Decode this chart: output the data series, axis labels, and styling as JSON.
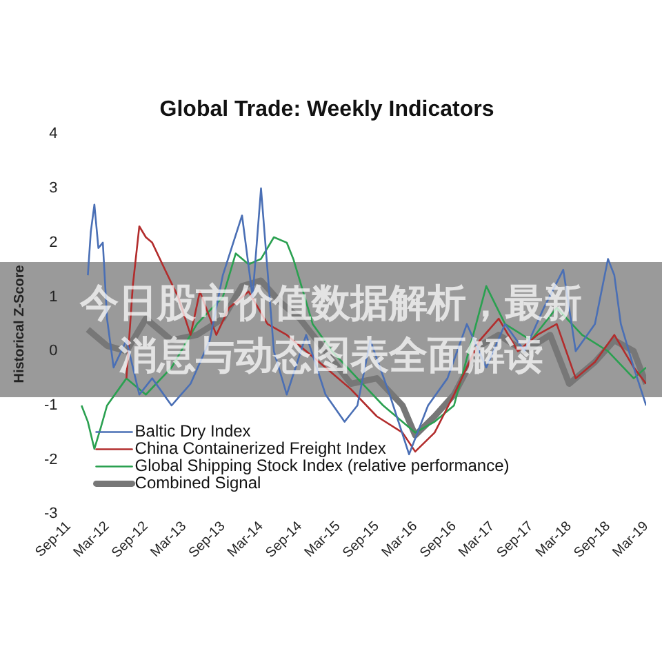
{
  "chart_data": {
    "type": "line",
    "title": "Global Trade: Weekly Indicators",
    "ylabel": "Historical Z-Score",
    "annotations": [
      "今日股市价值数据解析，最新消息与动态图表全面解读"
    ],
    "xlim": [
      "2011-09",
      "2019-03"
    ],
    "ylim": [
      -3,
      4
    ],
    "yticks": [
      -3,
      -2,
      -1,
      0,
      1,
      2,
      3,
      4
    ],
    "xticks": [
      {
        "value": "2011-09",
        "label": "Sep-11"
      },
      {
        "value": "2012-03",
        "label": "Mar-12"
      },
      {
        "value": "2012-09",
        "label": "Sep-12"
      },
      {
        "value": "2013-03",
        "label": "Mar-13"
      },
      {
        "value": "2013-09",
        "label": "Sep-13"
      },
      {
        "value": "2014-03",
        "label": "Mar-14"
      },
      {
        "value": "2014-09",
        "label": "Sep-14"
      },
      {
        "value": "2015-03",
        "label": "Mar-15"
      },
      {
        "value": "2015-09",
        "label": "Sep-15"
      },
      {
        "value": "2016-03",
        "label": "Mar-16"
      },
      {
        "value": "2016-09",
        "label": "Sep-16"
      },
      {
        "value": "2017-03",
        "label": "Mar-17"
      },
      {
        "value": "2017-09",
        "label": "Sep-17"
      },
      {
        "value": "2018-03",
        "label": "Mar-18"
      },
      {
        "value": "2018-09",
        "label": "Sep-18"
      },
      {
        "value": "2019-03",
        "label": "Mar-19"
      }
    ],
    "grid": false,
    "legend": "bottom left",
    "marker": "none",
    "line_style": "solid",
    "series": [
      {
        "name": "Baltic Dry Index",
        "color": "#4a6fb5",
        "x": [
          "2011-12-01",
          "2011-12-15",
          "2012-01-01",
          "2012-01-20",
          "2012-02-10",
          "2012-03-01",
          "2012-04-01",
          "2012-06-01",
          "2012-08-01",
          "2012-10-01",
          "2013-01-01",
          "2013-04-01",
          "2013-07-01",
          "2013-09-01",
          "2013-12-01",
          "2014-01-20",
          "2014-03-01",
          "2014-05-01",
          "2014-07-01",
          "2014-10-01",
          "2015-01-01",
          "2015-04-01",
          "2015-06-01",
          "2015-08-01",
          "2015-11-01",
          "2016-02-01",
          "2016-05-01",
          "2016-08-01",
          "2016-11-01",
          "2017-02-01",
          "2017-05-01",
          "2017-08-01",
          "2017-11-01",
          "2018-02-01",
          "2018-04-01",
          "2018-07-01",
          "2018-09-01",
          "2018-10-01",
          "2018-11-01",
          "2019-01-01",
          "2019-03-01"
        ],
        "values": [
          1.4,
          2.2,
          2.7,
          1.9,
          2.0,
          0.6,
          -0.3,
          0.2,
          -0.8,
          -0.5,
          -1.0,
          -0.6,
          0.2,
          1.4,
          2.5,
          1.0,
          3.0,
          0.0,
          -0.8,
          0.3,
          -0.8,
          -1.3,
          -1.0,
          0.2,
          -0.8,
          -1.9,
          -1.0,
          -0.5,
          0.5,
          -0.3,
          0.5,
          0.0,
          0.8,
          1.5,
          0.0,
          0.5,
          1.7,
          1.4,
          0.5,
          -0.3,
          -1.0
        ]
      },
      {
        "name": "China Containerized Freight Index",
        "color": "#b22c2c",
        "x": [
          "2012-06-01",
          "2012-07-01",
          "2012-08-01",
          "2012-09-01",
          "2012-10-01",
          "2012-12-01",
          "2013-02-01",
          "2013-04-01",
          "2013-05-15",
          "2013-08-01",
          "2013-10-01",
          "2014-01-01",
          "2014-04-01",
          "2014-07-01",
          "2014-10-01",
          "2015-01-01",
          "2015-05-01",
          "2015-09-01",
          "2016-01-01",
          "2016-03-01",
          "2016-06-01",
          "2016-09-01",
          "2017-01-01",
          "2017-04-01",
          "2017-07-01",
          "2017-10-01",
          "2018-01-01",
          "2018-04-01",
          "2018-07-01",
          "2018-10-01",
          "2019-01-01",
          "2019-03-01"
        ],
        "values": [
          -0.5,
          1.2,
          2.3,
          2.1,
          2.0,
          1.5,
          1.0,
          0.3,
          1.1,
          0.3,
          0.8,
          1.1,
          0.5,
          0.3,
          0.0,
          -0.3,
          -0.7,
          -1.2,
          -1.5,
          -1.85,
          -1.5,
          -0.8,
          0.2,
          0.6,
          0.0,
          0.3,
          0.5,
          -0.5,
          -0.2,
          0.3,
          -0.3,
          -0.6
        ]
      },
      {
        "name": "Global Shipping Stock Index (relative performance)",
        "color": "#2aa050",
        "x": [
          "2011-11-01",
          "2011-12-01",
          "2012-01-01",
          "2012-02-01",
          "2012-03-01",
          "2012-06-01",
          "2012-09-01",
          "2013-01-01",
          "2013-05-01",
          "2013-09-01",
          "2013-11-01",
          "2014-01-01",
          "2014-03-01",
          "2014-05-01",
          "2014-07-01",
          "2014-08-01",
          "2014-09-01",
          "2014-11-01",
          "2015-02-01",
          "2015-06-01",
          "2015-10-01",
          "2016-03-01",
          "2016-06-01",
          "2016-09-01",
          "2016-12-01",
          "2017-02-01",
          "2017-05-01",
          "2017-09-01",
          "2018-01-01",
          "2018-05-01",
          "2018-09-01",
          "2019-01-01",
          "2019-03-01"
        ],
        "values": [
          -1.0,
          -1.3,
          -1.8,
          -1.4,
          -1.0,
          -0.5,
          -0.8,
          -0.3,
          0.5,
          1.0,
          1.8,
          1.6,
          1.7,
          2.1,
          2.0,
          1.7,
          1.3,
          0.5,
          0.0,
          -0.5,
          -1.0,
          -1.5,
          -1.3,
          -1.0,
          0.3,
          1.2,
          0.5,
          0.2,
          0.8,
          0.3,
          0.0,
          -0.5,
          -0.3
        ]
      },
      {
        "name": "Combined Signal",
        "color": "#777777",
        "x": [
          "2011-12-01",
          "2012-03-01",
          "2012-06-01",
          "2012-09-01",
          "2013-01-01",
          "2013-05-01",
          "2013-09-01",
          "2013-12-01",
          "2014-03-01",
          "2014-06-01",
          "2014-09-01",
          "2015-01-01",
          "2015-05-01",
          "2015-09-01",
          "2016-01-01",
          "2016-03-01",
          "2016-06-01",
          "2016-09-01",
          "2017-01-01",
          "2017-04-01",
          "2017-08-01",
          "2017-12-01",
          "2018-03-01",
          "2018-07-01",
          "2018-10-01",
          "2019-01-01",
          "2019-03-01"
        ],
        "values": [
          0.4,
          0.1,
          0.0,
          0.6,
          0.2,
          0.3,
          0.6,
          1.2,
          1.3,
          0.9,
          0.6,
          0.0,
          -0.6,
          -0.5,
          -1.0,
          -1.55,
          -1.2,
          -0.8,
          0.1,
          0.3,
          0.0,
          0.3,
          -0.6,
          -0.2,
          0.2,
          0.0,
          -0.6
        ]
      }
    ]
  }
}
